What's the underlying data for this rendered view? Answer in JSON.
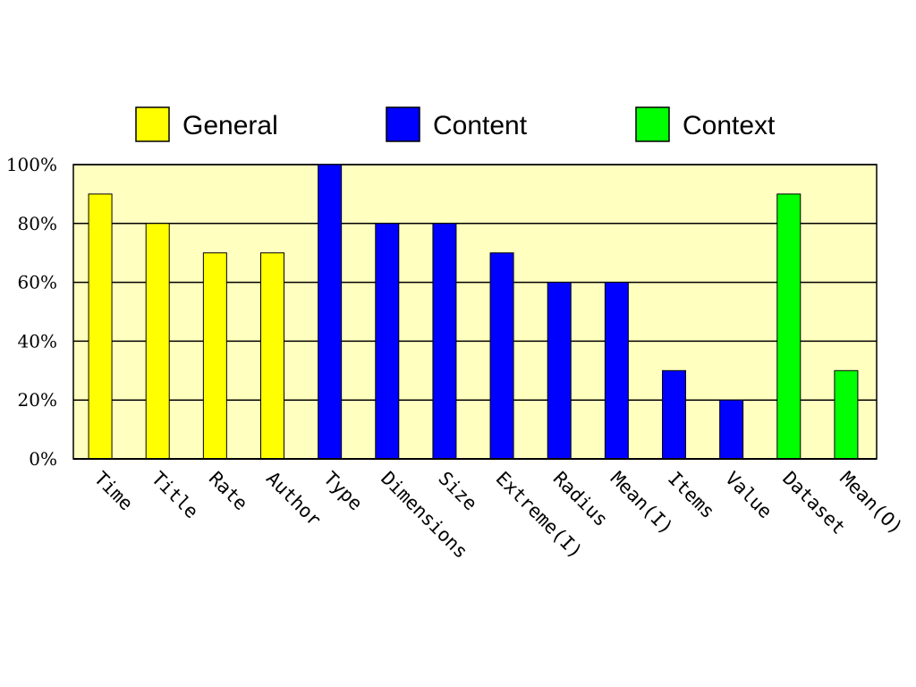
{
  "chart_data": {
    "type": "bar",
    "categories": [
      "Time",
      "Title",
      "Rate",
      "Author",
      "Type",
      "Dimensions",
      "Size",
      "Extreme(I)",
      "Radius",
      "Mean(I)",
      "Items",
      "Value",
      "Dataset",
      "Mean(O)"
    ],
    "values": [
      90,
      80,
      70,
      70,
      100,
      80,
      80,
      70,
      60,
      60,
      30,
      20,
      90,
      30
    ],
    "groups": [
      "General",
      "General",
      "General",
      "General",
      "Content",
      "Content",
      "Content",
      "Content",
      "Content",
      "Content",
      "Content",
      "Content",
      "Context",
      "Context"
    ],
    "legend": [
      {
        "name": "General",
        "color": "#ffff00"
      },
      {
        "name": "Content",
        "color": "#0000ff"
      },
      {
        "name": "Context",
        "color": "#00ff00"
      }
    ],
    "ylim": [
      0,
      100
    ],
    "yticks": [
      0,
      20,
      40,
      60,
      80,
      100
    ],
    "ytick_labels": [
      "0%",
      "20%",
      "40%",
      "60%",
      "80%",
      "100%"
    ],
    "legend_position": "top",
    "grid": true,
    "plot_background": "#ffffc0"
  }
}
